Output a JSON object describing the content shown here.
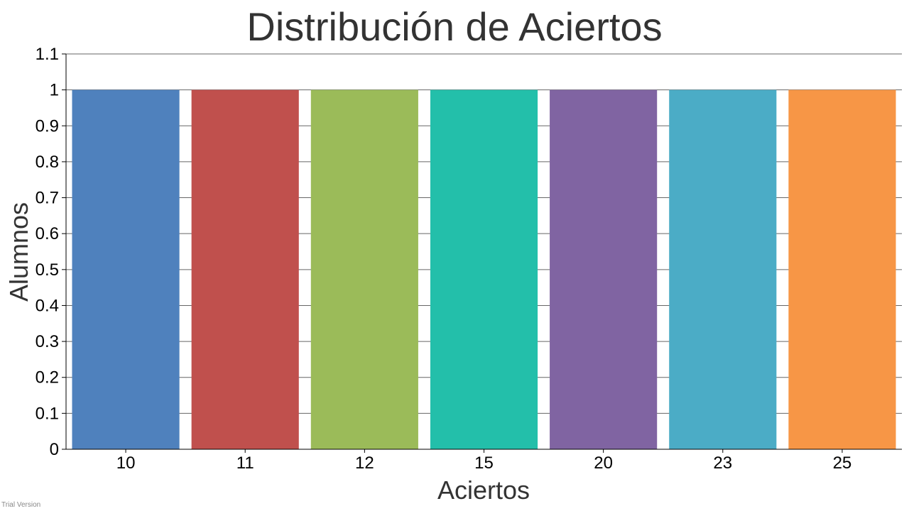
{
  "chart_data": {
    "type": "bar",
    "title": "Distribución de Aciertos",
    "xlabel": "Aciertos",
    "ylabel": "Alumnos",
    "categories": [
      "10",
      "11",
      "12",
      "15",
      "20",
      "23",
      "25"
    ],
    "values": [
      1,
      1,
      1,
      1,
      1,
      1,
      1
    ],
    "colors": [
      "#4f81bd",
      "#c0504d",
      "#9bbb59",
      "#23bfaa",
      "#8064a2",
      "#4bacc6",
      "#f79646"
    ],
    "ylim": [
      0,
      1.1
    ],
    "yticks": [
      "0",
      "0.1",
      "0.2",
      "0.3",
      "0.4",
      "0.5",
      "0.6",
      "0.7",
      "0.8",
      "0.9",
      "1",
      "1.1"
    ],
    "grid": true,
    "legend": "none"
  },
  "footer": {
    "watermark": "Trial Version"
  }
}
